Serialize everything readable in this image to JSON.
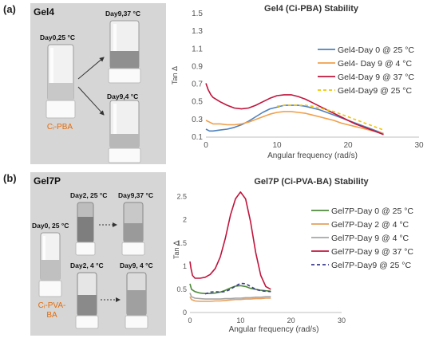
{
  "panels": {
    "a": {
      "letter": "(a)",
      "gel_label": "Gel4",
      "vials": {
        "day0": "Day0,25 °C",
        "day9_37": "Day9,37 °C",
        "day9_4": "Day9,4 °C"
      },
      "sample_line1": "Cᵢ-PBA",
      "sample_line2": ""
    },
    "b": {
      "letter": "(b)",
      "gel_label": "Gel7P",
      "vials": {
        "day0": "Day0, 25 °C",
        "day2_25": "Day2, 25 °C",
        "day9_37": "Day9,37 °C",
        "day2_4": "Day2, 4 °C",
        "day9_4": "Day9, 4 °C"
      },
      "sample_line1": "Cᵢ-PVA-",
      "sample_line2": "BA"
    }
  },
  "chart_data": [
    {
      "type": "line",
      "title": "Gel4 (Ci-PBA) Stability",
      "xlabel": "Angular frequency (rad/s)",
      "ylabel": "Tan Δ",
      "xlim": [
        0,
        30
      ],
      "ylim": [
        0.1,
        1.5
      ],
      "xticks": [
        "0",
        "10",
        "20",
        "30"
      ],
      "yticks": [
        "0.1",
        "0.3",
        "0.5",
        "0.7",
        "0.9",
        "1.1",
        "1.3",
        "1.5"
      ],
      "grid": false,
      "legend_position": "right",
      "series": [
        {
          "name": "Gel4-Day 0 @ 25 °C",
          "color": "#4f81bd",
          "dashed": false,
          "x": [
            0,
            0.5,
            1,
            2,
            3,
            4,
            5,
            6,
            7,
            8,
            9,
            10,
            11,
            12,
            13,
            14,
            15,
            16,
            17,
            18,
            19,
            20,
            21,
            22,
            23,
            24,
            25
          ],
          "y": [
            0.19,
            0.17,
            0.17,
            0.18,
            0.19,
            0.21,
            0.24,
            0.28,
            0.33,
            0.38,
            0.42,
            0.44,
            0.46,
            0.46,
            0.46,
            0.45,
            0.43,
            0.41,
            0.38,
            0.35,
            0.32,
            0.29,
            0.26,
            0.23,
            0.2,
            0.17,
            0.14
          ]
        },
        {
          "name": "Gel4- Day 9 @ 4 °C",
          "color": "#f0a04b",
          "dashed": false,
          "x": [
            0,
            0.5,
            1,
            2,
            3,
            4,
            5,
            6,
            7,
            8,
            9,
            10,
            11,
            12,
            13,
            14,
            15,
            16,
            17,
            18,
            19,
            20,
            21,
            22,
            23,
            24,
            25
          ],
          "y": [
            0.29,
            0.27,
            0.25,
            0.25,
            0.24,
            0.24,
            0.25,
            0.27,
            0.3,
            0.33,
            0.36,
            0.38,
            0.39,
            0.39,
            0.38,
            0.37,
            0.35,
            0.33,
            0.31,
            0.29,
            0.26,
            0.24,
            0.22,
            0.2,
            0.18,
            0.16,
            0.14
          ]
        },
        {
          "name": "Gel4-Day 9 @ 37 °C",
          "color": "#c0143c",
          "dashed": false,
          "x": [
            0,
            0.3,
            0.7,
            1,
            2,
            3,
            4,
            5,
            6,
            7,
            8,
            9,
            10,
            11,
            12,
            13,
            14,
            15,
            16,
            17,
            18,
            19,
            20,
            21,
            22,
            23,
            24,
            25
          ],
          "y": [
            0.71,
            0.64,
            0.58,
            0.55,
            0.5,
            0.46,
            0.43,
            0.42,
            0.43,
            0.46,
            0.5,
            0.54,
            0.57,
            0.58,
            0.58,
            0.56,
            0.53,
            0.49,
            0.45,
            0.41,
            0.37,
            0.33,
            0.29,
            0.25,
            0.22,
            0.19,
            0.16,
            0.13
          ]
        },
        {
          "name": "Gel4-Day9 @ 25 °C",
          "color": "#f2c500",
          "dashed": true,
          "x": [
            10,
            11,
            12,
            13,
            14,
            15,
            16,
            17,
            18,
            19,
            20,
            21,
            22,
            23,
            24,
            25
          ],
          "y": [
            0.45,
            0.46,
            0.46,
            0.46,
            0.46,
            0.45,
            0.43,
            0.41,
            0.39,
            0.36,
            0.33,
            0.3,
            0.27,
            0.24,
            0.21,
            0.18
          ]
        }
      ]
    },
    {
      "type": "line",
      "title": "Gel7P (Ci-PVA-BA) Stability",
      "xlabel": "Angular frequency (rad/s)",
      "ylabel": "Tan Δ",
      "xlim": [
        0,
        30
      ],
      "ylim": [
        0,
        2.7
      ],
      "xticks": [
        "0",
        "10",
        "20",
        "30"
      ],
      "yticks": [
        "0",
        "0.5",
        "1",
        "1.5",
        "2",
        "2.5"
      ],
      "grid": false,
      "legend_position": "right",
      "series": [
        {
          "name": "Gel7P-Day 0 @ 25 °C",
          "color": "#4f8a3c",
          "dashed": false,
          "x": [
            0,
            0.3,
            1,
            2,
            3,
            4,
            5,
            6,
            7,
            8,
            9,
            10,
            11,
            12,
            13,
            14,
            15,
            16
          ],
          "y": [
            0.62,
            0.5,
            0.45,
            0.42,
            0.41,
            0.41,
            0.42,
            0.44,
            0.48,
            0.53,
            0.57,
            0.58,
            0.56,
            0.52,
            0.5,
            0.48,
            0.47,
            0.46
          ]
        },
        {
          "name": "Gel7P-Day 2 @ 4 °C",
          "color": "#e6a15f",
          "dashed": false,
          "x": [
            0,
            0.3,
            1,
            2,
            3,
            4,
            5,
            6,
            7,
            8,
            9,
            10,
            11,
            12,
            13,
            14,
            15,
            16
          ],
          "y": [
            0.34,
            0.28,
            0.25,
            0.24,
            0.24,
            0.24,
            0.25,
            0.25,
            0.26,
            0.27,
            0.28,
            0.28,
            0.29,
            0.29,
            0.3,
            0.3,
            0.31,
            0.31
          ]
        },
        {
          "name": "Gel7P-Day 9 @ 4 °C",
          "color": "#a6a6a6",
          "dashed": false,
          "x": [
            0,
            0.3,
            1,
            2,
            3,
            4,
            5,
            6,
            7,
            8,
            9,
            10,
            11,
            12,
            13,
            14,
            15,
            16
          ],
          "y": [
            0.42,
            0.34,
            0.31,
            0.3,
            0.29,
            0.29,
            0.29,
            0.29,
            0.3,
            0.3,
            0.31,
            0.31,
            0.32,
            0.32,
            0.33,
            0.33,
            0.34,
            0.34
          ]
        },
        {
          "name": "Gel7P-Day 9 @ 37 °C",
          "color": "#c0143c",
          "dashed": false,
          "x": [
            0,
            0.2,
            0.5,
            1,
            2,
            3,
            4,
            5,
            6,
            7,
            8,
            9,
            10,
            11,
            12,
            13,
            14,
            15,
            16
          ],
          "y": [
            1.1,
            0.95,
            0.8,
            0.74,
            0.74,
            0.76,
            0.82,
            0.95,
            1.2,
            1.6,
            2.1,
            2.45,
            2.6,
            2.45,
            1.95,
            1.3,
            0.8,
            0.56,
            0.5
          ]
        },
        {
          "name": "Gel7P-Day9 @ 25 °C",
          "color": "#3a3a8f",
          "dashed": true,
          "x": [
            3,
            4,
            5,
            6,
            7,
            8,
            9,
            10,
            11,
            12,
            13,
            14,
            15,
            16
          ],
          "y": [
            0.4,
            0.44,
            0.45,
            0.44,
            0.45,
            0.5,
            0.57,
            0.63,
            0.62,
            0.56,
            0.5,
            0.47,
            0.46,
            0.45
          ]
        }
      ]
    }
  ]
}
